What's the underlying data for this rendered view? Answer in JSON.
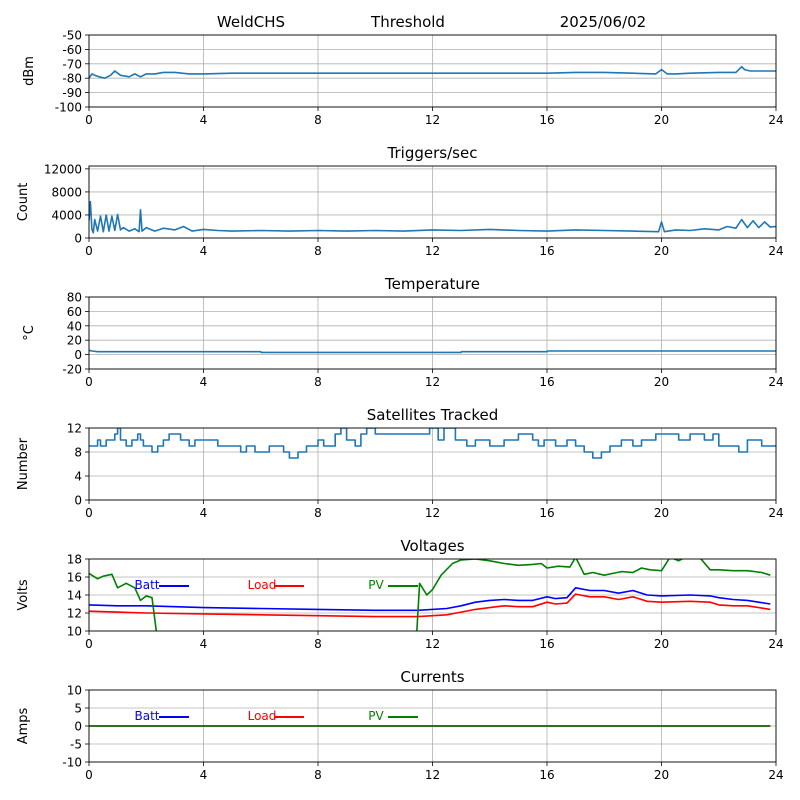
{
  "header": {
    "station": "WeldCHS",
    "mode": "Threshold",
    "date": "2025/06/02"
  },
  "colors": {
    "series_default": "#1f77b4",
    "grid": "#b0b0b0",
    "batt": "#0000ff",
    "load": "#ff0000",
    "pv": "#008000"
  },
  "chart_data": [
    {
      "type": "line",
      "title": "",
      "ylabel": "dBm",
      "xlim": [
        0,
        24
      ],
      "x_ticks": [
        "0",
        "4",
        "8",
        "12",
        "16",
        "20",
        "24"
      ],
      "ylim": [
        -100,
        -50
      ],
      "y_ticks": [
        "-50",
        "-60",
        "-70",
        "-80",
        "-90",
        "-100"
      ],
      "grid": true,
      "series": [
        {
          "color_key": "series_default",
          "x": [
            0,
            0.1,
            0.2,
            0.35,
            0.55,
            0.75,
            0.9,
            1.1,
            1.4,
            1.6,
            1.8,
            2.0,
            2.3,
            2.6,
            3.0,
            3.5,
            4.0,
            5,
            6,
            8,
            10,
            12,
            14,
            16,
            17,
            18,
            19,
            19.8,
            20.0,
            20.2,
            20.5,
            21,
            22,
            22.6,
            22.8,
            22.9,
            23.1,
            23.5,
            24
          ],
          "y": [
            -80,
            -77,
            -78,
            -79,
            -80,
            -78,
            -75,
            -78,
            -79,
            -77,
            -79,
            -77,
            -77,
            -76,
            -76,
            -77,
            -77,
            -76.5,
            -76.5,
            -76.5,
            -76.5,
            -76.5,
            -76.5,
            -76.5,
            -76,
            -76,
            -76.5,
            -77,
            -74,
            -77,
            -77,
            -76.5,
            -76,
            -76,
            -72,
            -74,
            -75,
            -75,
            -75
          ]
        }
      ]
    },
    {
      "type": "line",
      "title": "Triggers/sec",
      "ylabel": "Count",
      "xlim": [
        0,
        24
      ],
      "x_ticks": [
        "0",
        "4",
        "8",
        "12",
        "16",
        "20",
        "24"
      ],
      "ylim": [
        0,
        12500
      ],
      "y_ticks": [
        "12000",
        "8000",
        "4000",
        "0"
      ],
      "grid": true,
      "series": [
        {
          "color_key": "series_default",
          "x": [
            0,
            0.05,
            0.1,
            0.15,
            0.2,
            0.3,
            0.4,
            0.5,
            0.6,
            0.7,
            0.8,
            0.9,
            1.0,
            1.1,
            1.2,
            1.4,
            1.6,
            1.75,
            1.8,
            1.85,
            2.0,
            2.3,
            2.6,
            3.0,
            3.3,
            3.6,
            4.0,
            4.5,
            5,
            6,
            7,
            8,
            9,
            10,
            11,
            12,
            13,
            14,
            15,
            16,
            17,
            18,
            19,
            19.9,
            20.0,
            20.1,
            20.5,
            21,
            21.5,
            22,
            22.3,
            22.6,
            22.8,
            23.0,
            23.2,
            23.4,
            23.6,
            23.8,
            24
          ],
          "y": [
            3000,
            6300,
            1500,
            900,
            3200,
            1200,
            3800,
            1100,
            4000,
            1200,
            3800,
            1300,
            4100,
            1400,
            1800,
            1200,
            1600,
            1100,
            4900,
            1200,
            1800,
            1200,
            1700,
            1400,
            2000,
            1200,
            1500,
            1300,
            1200,
            1300,
            1200,
            1300,
            1200,
            1300,
            1200,
            1400,
            1300,
            1500,
            1300,
            1200,
            1400,
            1300,
            1200,
            1100,
            2800,
            1100,
            1400,
            1300,
            1600,
            1400,
            2000,
            1700,
            3200,
            1800,
            3000,
            1800,
            2800,
            1900,
            2000
          ]
        }
      ]
    },
    {
      "type": "line",
      "title": "Temperature",
      "ylabel": "°C",
      "xlim": [
        0,
        24
      ],
      "x_ticks": [
        "0",
        "4",
        "8",
        "12",
        "16",
        "20",
        "24"
      ],
      "ylim": [
        -20,
        80
      ],
      "y_ticks": [
        "80",
        "60",
        "40",
        "20",
        "0",
        "-20"
      ],
      "grid": true,
      "series": [
        {
          "color_key": "series_default",
          "x": [
            0,
            0.1,
            0.3,
            6.0,
            6.01,
            13.0,
            13.01,
            16.0,
            16.01,
            24
          ],
          "y": [
            6,
            5,
            4,
            4,
            3,
            3,
            4,
            4,
            5,
            5
          ]
        }
      ]
    },
    {
      "type": "line",
      "step": true,
      "title": "Satellites Tracked",
      "ylabel": "Number",
      "xlim": [
        0,
        24
      ],
      "x_ticks": [
        "0",
        "4",
        "8",
        "12",
        "16",
        "20",
        "24"
      ],
      "ylim": [
        0,
        12
      ],
      "y_ticks": [
        "12",
        "8",
        "4",
        "0"
      ],
      "grid": true,
      "series": [
        {
          "color_key": "series_default",
          "x": [
            0,
            0.3,
            0.4,
            0.6,
            0.9,
            1.0,
            1.1,
            1.3,
            1.5,
            1.7,
            1.8,
            1.9,
            2.2,
            2.4,
            2.6,
            2.8,
            3.2,
            3.5,
            3.7,
            4.2,
            4.5,
            5,
            5.3,
            5.5,
            5.8,
            6.3,
            6.8,
            7.0,
            7.3,
            7.6,
            8.0,
            8.2,
            8.6,
            8.8,
            9.0,
            9.3,
            9.5,
            9.7,
            10,
            10.4,
            11.0,
            11.5,
            11.9,
            12.2,
            12.4,
            12.8,
            13.2,
            13.5,
            14.0,
            14.5,
            15.0,
            15.5,
            15.7,
            15.9,
            16.3,
            16.7,
            17.0,
            17.3,
            17.6,
            17.9,
            18.2,
            18.6,
            19.0,
            19.3,
            19.8,
            20.1,
            20.6,
            21.0,
            21.5,
            21.8,
            22.0,
            22.7,
            22.9,
            23.0,
            23.5,
            24
          ],
          "y": [
            9,
            10,
            9,
            10,
            11,
            12,
            10,
            9,
            10,
            11,
            10,
            9,
            8,
            9,
            10,
            11,
            10,
            9,
            10,
            10,
            9,
            9,
            8,
            9,
            8,
            9,
            8,
            7,
            8,
            9,
            10,
            9,
            11,
            12,
            10,
            9,
            11,
            12,
            11,
            11,
            11,
            11,
            12,
            10,
            12,
            10,
            9,
            10,
            9,
            10,
            11,
            10,
            9,
            10,
            9,
            10,
            9,
            8,
            7,
            8,
            9,
            10,
            9,
            10,
            11,
            11,
            10,
            11,
            10,
            11,
            9,
            8,
            8,
            10,
            9,
            9
          ]
        }
      ]
    },
    {
      "type": "line",
      "title": "Voltages",
      "ylabel": "Volts",
      "xlim": [
        0,
        24
      ],
      "x_ticks": [
        "0",
        "4",
        "8",
        "12",
        "16",
        "20",
        "24"
      ],
      "ylim": [
        10,
        18
      ],
      "y_ticks": [
        "18",
        "16",
        "14",
        "12",
        "10"
      ],
      "grid": true,
      "legend": [
        "Batt",
        "Load",
        "PV"
      ],
      "series": [
        {
          "name": "Batt",
          "color_key": "batt",
          "x": [
            0,
            1,
            2,
            4,
            6,
            8,
            10,
            11.5,
            12.5,
            13.0,
            13.5,
            14.0,
            14.5,
            15.0,
            15.5,
            16.0,
            16.3,
            16.7,
            17.0,
            17.5,
            18.0,
            18.5,
            19.0,
            19.5,
            20.0,
            21.0,
            21.7,
            22.0,
            22.5,
            23.0,
            23.4,
            23.8
          ],
          "y": [
            12.9,
            12.8,
            12.8,
            12.6,
            12.5,
            12.4,
            12.3,
            12.3,
            12.5,
            12.8,
            13.2,
            13.4,
            13.5,
            13.4,
            13.4,
            13.8,
            13.6,
            13.7,
            14.8,
            14.5,
            14.5,
            14.2,
            14.5,
            14.0,
            13.9,
            14.0,
            13.9,
            13.7,
            13.5,
            13.4,
            13.2,
            13.0
          ]
        },
        {
          "name": "Load",
          "color_key": "load",
          "x": [
            0,
            1,
            2,
            4,
            6,
            8,
            10,
            11.5,
            12.5,
            13.0,
            13.5,
            14.0,
            14.5,
            15.0,
            15.5,
            16.0,
            16.3,
            16.7,
            17.0,
            17.5,
            18.0,
            18.5,
            19.0,
            19.5,
            20.0,
            21.0,
            21.7,
            22.0,
            22.5,
            23.0,
            23.4,
            23.8
          ],
          "y": [
            12.2,
            12.1,
            12.0,
            11.9,
            11.8,
            11.7,
            11.6,
            11.6,
            11.8,
            12.1,
            12.4,
            12.6,
            12.8,
            12.7,
            12.7,
            13.2,
            13.0,
            13.1,
            14.1,
            13.8,
            13.8,
            13.5,
            13.8,
            13.3,
            13.2,
            13.3,
            13.2,
            12.9,
            12.8,
            12.8,
            12.6,
            12.4
          ]
        },
        {
          "name": "PV",
          "color_key": "pv",
          "x": [
            0,
            0.3,
            0.5,
            0.8,
            1.0,
            1.3,
            1.6,
            1.8,
            2.0,
            2.2,
            2.35,
            2.45,
            11.4,
            11.55,
            11.8,
            12.0,
            12.3,
            12.7,
            13.0,
            13.5,
            14.0,
            14.5,
            15.0,
            15.5,
            15.8,
            16.0,
            16.4,
            16.8,
            17.0,
            17.3,
            17.6,
            18.0,
            18.3,
            18.6,
            19.0,
            19.3,
            19.6,
            20.0,
            20.3,
            20.6,
            21.0,
            21.3,
            21.7,
            22.0,
            22.5,
            23.0,
            23.5,
            23.8
          ],
          "y": [
            16.4,
            15.8,
            16.1,
            16.3,
            14.8,
            15.3,
            14.8,
            13.4,
            13.9,
            13.7,
            10.0,
            7.0,
            7.0,
            15.3,
            14.0,
            14.6,
            16.2,
            17.5,
            17.9,
            18.0,
            17.8,
            17.5,
            17.3,
            17.4,
            17.5,
            17.0,
            17.2,
            17.1,
            18.2,
            16.3,
            16.5,
            16.2,
            16.4,
            16.6,
            16.5,
            17.0,
            16.8,
            16.7,
            18.2,
            17.8,
            18.5,
            18.3,
            16.8,
            16.8,
            16.7,
            16.7,
            16.5,
            16.2
          ]
        }
      ]
    },
    {
      "type": "line",
      "title": "Currents",
      "ylabel": "Amps",
      "xlim": [
        0,
        24
      ],
      "x_ticks": [
        "0",
        "4",
        "8",
        "12",
        "16",
        "20",
        "24"
      ],
      "ylim": [
        -10,
        10
      ],
      "y_ticks": [
        "10",
        "5",
        "0",
        "-5",
        "-10"
      ],
      "grid": true,
      "legend": [
        "Batt",
        "Load",
        "PV"
      ],
      "series": [
        {
          "name": "Batt",
          "color_key": "batt",
          "x": [
            0,
            23.8
          ],
          "y": [
            0,
            0
          ]
        },
        {
          "name": "Load",
          "color_key": "load",
          "x": [
            0,
            23.8
          ],
          "y": [
            0,
            0
          ]
        },
        {
          "name": "PV",
          "color_key": "pv",
          "x": [
            0,
            23.8
          ],
          "y": [
            0,
            0
          ]
        }
      ]
    }
  ]
}
